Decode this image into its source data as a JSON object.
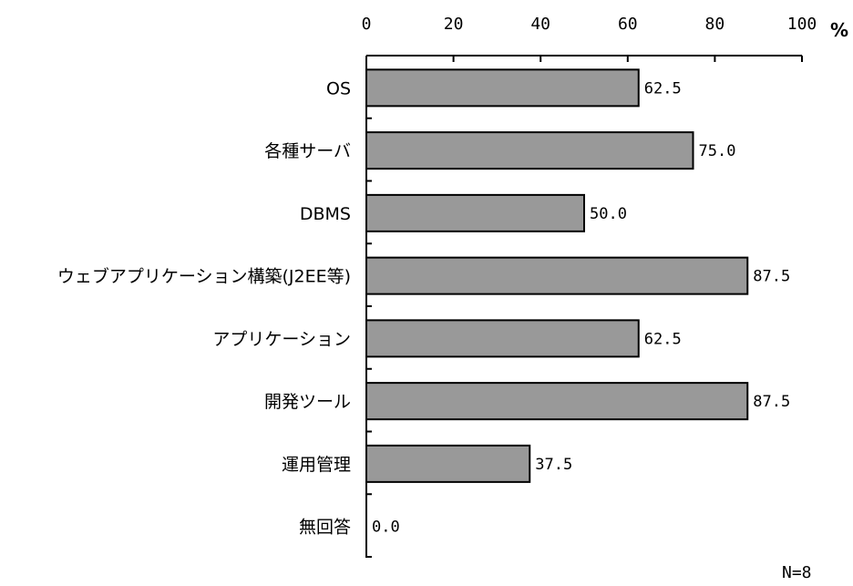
{
  "chart_data": {
    "type": "bar",
    "orientation": "horizontal",
    "categories": [
      "OS",
      "各種サーバ",
      "DBMS",
      "ウェブアプリケーション構築(J2EE等)",
      "アプリケーション",
      "開発ツール",
      "運用管理",
      "無回答"
    ],
    "values": [
      62.5,
      75.0,
      50.0,
      87.5,
      62.5,
      87.5,
      37.5,
      0.0
    ],
    "value_labels": [
      "62.5",
      "75.0",
      "50.0",
      "87.5",
      "62.5",
      "87.5",
      "37.5",
      "0.0"
    ],
    "xlim": [
      0,
      100
    ],
    "xticks": [
      "0",
      "20",
      "40",
      "60",
      "80",
      "100"
    ],
    "x_axis_position": "top",
    "unit": "%",
    "note": "N=8",
    "grid": false,
    "bar_color": "#999999",
    "bar_edge_color": "#000000"
  }
}
